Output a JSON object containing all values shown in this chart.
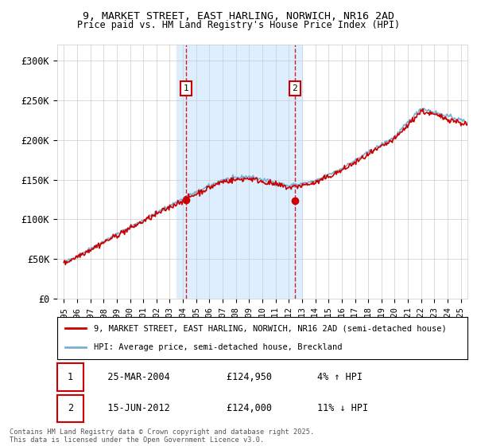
{
  "title1": "9, MARKET STREET, EAST HARLING, NORWICH, NR16 2AD",
  "title2": "Price paid vs. HM Land Registry's House Price Index (HPI)",
  "ylabel_ticks": [
    "£0",
    "£50K",
    "£100K",
    "£150K",
    "£200K",
    "£250K",
    "£300K"
  ],
  "ytick_values": [
    0,
    50000,
    100000,
    150000,
    200000,
    250000,
    300000
  ],
  "ylim": [
    0,
    320000
  ],
  "xlim_start": 1994.5,
  "xlim_end": 2025.5,
  "sale1_date": 2004.23,
  "sale1_price": 124950,
  "sale1_label": "1",
  "sale1_hpi_pct": "4% ↑ HPI",
  "sale1_date_str": "25-MAR-2004",
  "sale2_date": 2012.46,
  "sale2_price": 124000,
  "sale2_label": "2",
  "sale2_hpi_pct": "11% ↓ HPI",
  "sale2_date_str": "15-JUN-2012",
  "shaded_start": 2003.5,
  "shaded_end": 2013.0,
  "legend_line1": "9, MARKET STREET, EAST HARLING, NORWICH, NR16 2AD (semi-detached house)",
  "legend_line2": "HPI: Average price, semi-detached house, Breckland",
  "footnote": "Contains HM Land Registry data © Crown copyright and database right 2025.\nThis data is licensed under the Open Government Licence v3.0.",
  "price_color": "#cc0000",
  "hpi_color": "#7ab0d4",
  "shade_color": "#ddeeff",
  "background_color": "#ffffff",
  "grid_color": "#cccccc"
}
